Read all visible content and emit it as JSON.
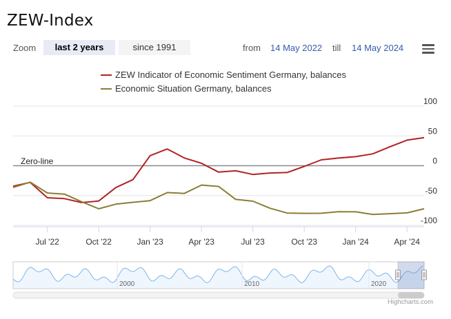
{
  "title": "ZEW-Index",
  "zoom": {
    "label": "Zoom",
    "buttons": [
      {
        "label": "last 2 years",
        "active": true
      },
      {
        "label": "since 1991",
        "active": false
      }
    ]
  },
  "range": {
    "from_label": "from",
    "from_value": "14 May 2022",
    "till_label": "till",
    "till_value": "14 May 2024"
  },
  "menu_icon": "hamburger-menu-icon",
  "colors": {
    "sentiment": "#b22222",
    "situation": "#8b7d35",
    "zero_line": "#888888",
    "grid": "#e6e6e6",
    "navigator_series": "#7cb5ec",
    "navigator_mask": "#ccd6eb"
  },
  "chart_data": {
    "type": "line",
    "title": "",
    "xlabel": "",
    "ylabel": "",
    "ylim": [
      -100,
      100
    ],
    "yticks": [
      100,
      50,
      0,
      -50,
      -100
    ],
    "x_tick_labels": [
      "Jul '22",
      "Oct '22",
      "Jan '23",
      "Apr '23",
      "Jul '23",
      "Oct '23",
      "Jan '24",
      "Apr '24"
    ],
    "x": [
      "May '22",
      "Jun '22",
      "Jul '22",
      "Aug '22",
      "Sep '22",
      "Oct '22",
      "Nov '22",
      "Dec '22",
      "Jan '23",
      "Feb '23",
      "Mar '23",
      "Apr '23",
      "May '23",
      "Jun '23",
      "Jul '23",
      "Aug '23",
      "Sep '23",
      "Oct '23",
      "Nov '23",
      "Dec '23",
      "Jan '24",
      "Feb '24",
      "Mar '24",
      "Apr '24",
      "May '24"
    ],
    "series": [
      {
        "name": "ZEW Indicator of Economic Sentiment Germany, balances",
        "values": [
          -34.3,
          -28.0,
          -53.8,
          -55.3,
          -61.9,
          -59.2,
          -36.7,
          -23.3,
          16.9,
          28.1,
          13.0,
          4.1,
          -10.7,
          -8.5,
          -14.7,
          -12.3,
          -11.4,
          -1.1,
          9.8,
          12.8,
          15.2,
          19.9,
          31.7,
          42.9,
          47.1
        ]
      },
      {
        "name": "Economic Situation Germany, balances",
        "values": [
          -36.5,
          -27.6,
          -45.8,
          -47.6,
          -60.5,
          -72.2,
          -64.5,
          -61.4,
          -58.6,
          -45.1,
          -46.5,
          -32.5,
          -34.8,
          -56.5,
          -59.5,
          -71.3,
          -79.4,
          -79.9,
          -79.8,
          -77.1,
          -77.3,
          -81.7,
          -80.5,
          -79.2,
          -72.3
        ]
      }
    ],
    "annotations": [
      "Zero-line"
    ],
    "grid": true,
    "legend_position": "top"
  },
  "navigator": {
    "year_labels": [
      "2000",
      "2010",
      "2020"
    ]
  },
  "credits": "Highcharts.com"
}
